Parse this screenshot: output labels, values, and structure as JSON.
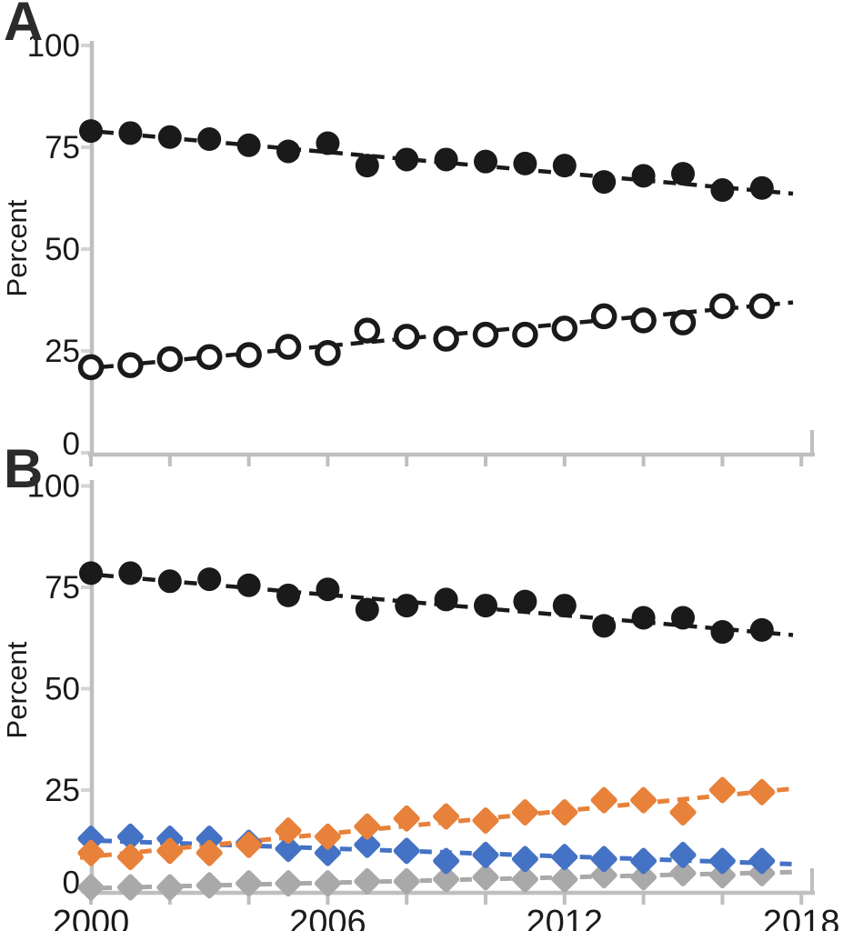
{
  "figure": {
    "panel_a_label": "A",
    "panel_b_label": "B",
    "y_axis_title_a": "Percent",
    "y_axis_title_b": "Percent"
  },
  "colors": {
    "marker_black": "#1a1a1a",
    "marker_orange": "#E8813A",
    "marker_blue": "#4472C4",
    "marker_gray": "#A9A9A9",
    "axis_line": "#BFBFBF",
    "y_tick_mark": "#D4D4D4",
    "tick_text": "#1a1a1a"
  },
  "chart_data": [
    {
      "panel": "A",
      "type": "scatter",
      "title": "",
      "xlabel": "",
      "ylabel": "Percent",
      "x": [
        2000,
        2001,
        2002,
        2003,
        2004,
        2005,
        2006,
        2007,
        2008,
        2009,
        2010,
        2011,
        2012,
        2013,
        2014,
        2015,
        2016,
        2017
      ],
      "xlim": [
        2000,
        2018
      ],
      "ylim": [
        0,
        100
      ],
      "yticks": [
        0,
        25,
        50,
        75,
        100
      ],
      "xtick_label_years": [],
      "xtick_minor_step": 2,
      "grid": false,
      "legend": "none",
      "series": [
        {
          "name": "filled-circles",
          "marker": "filled-circle",
          "color": "#1a1a1a",
          "line": "dashed-trend",
          "values": [
            79,
            78.5,
            77.5,
            77,
            75.5,
            74,
            76,
            70.5,
            72,
            72,
            71.5,
            71,
            70.5,
            66.5,
            68,
            68.5,
            64.5,
            65
          ],
          "trend": {
            "y_2000": 79.0,
            "y_2017": 64.3
          }
        },
        {
          "name": "open-circles",
          "marker": "open-circle",
          "color": "#1a1a1a",
          "line": "dashed-trend",
          "values": [
            21,
            21.5,
            23,
            23.5,
            24,
            26,
            24.5,
            30,
            28.5,
            28,
            29,
            29,
            30.5,
            33.5,
            32.5,
            32,
            36,
            36
          ],
          "trend": {
            "y_2000": 20.8,
            "y_2017": 36.2
          }
        }
      ]
    },
    {
      "panel": "B",
      "type": "scatter",
      "title": "",
      "xlabel": "",
      "ylabel": "Percent",
      "x": [
        2000,
        2001,
        2002,
        2003,
        2004,
        2005,
        2006,
        2007,
        2008,
        2009,
        2010,
        2011,
        2012,
        2013,
        2014,
        2015,
        2016,
        2017
      ],
      "xlim": [
        2000,
        2018
      ],
      "ylim": [
        0,
        100
      ],
      "yticks": [
        0,
        25,
        50,
        75,
        100
      ],
      "xtick_label_years": [
        2000,
        2006,
        2012,
        2018
      ],
      "xtick_minor_step": 2,
      "grid": false,
      "legend": "none",
      "series": [
        {
          "name": "filled-circles",
          "marker": "filled-circle",
          "color": "#1a1a1a",
          "line": "dashed-trend",
          "values": [
            78.5,
            78.5,
            76.5,
            77,
            75.5,
            73,
            74.5,
            69.5,
            70.5,
            72,
            70.5,
            71.5,
            70.5,
            65.5,
            67.5,
            67.5,
            64,
            64.5
          ],
          "trend": {
            "y_2000": 78.2,
            "y_2017": 63.9
          }
        },
        {
          "name": "gray-diamonds",
          "marker": "diamond",
          "color": "#A9A9A9",
          "line": "dashed-trend",
          "values": [
            1,
            1,
            1,
            1.5,
            2,
            2,
            2,
            2.5,
            2.5,
            3,
            3.5,
            3,
            3,
            4,
            3.5,
            4.5,
            4,
            4.5
          ],
          "trend": {
            "y_2000": 0.8,
            "y_2017": 4.6
          }
        },
        {
          "name": "blue-diamonds",
          "marker": "diamond",
          "color": "#4472C4",
          "line": "dashed-trend",
          "values": [
            13,
            13.5,
            13,
            13,
            12,
            10.5,
            9.5,
            11.5,
            10,
            7.5,
            9,
            8,
            8.5,
            8,
            7.5,
            9,
            7.5,
            7.5
          ],
          "trend": {
            "y_2000": 12.6,
            "y_2017": 7.0
          }
        },
        {
          "name": "orange-diamonds",
          "marker": "diamond",
          "color": "#E8813A",
          "line": "dashed-trend",
          "values": [
            9.5,
            8.5,
            10,
            9.5,
            11.5,
            15,
            13.5,
            16,
            18,
            18.5,
            17.5,
            19.5,
            19.5,
            22.5,
            22.5,
            19.5,
            25,
            24.5
          ],
          "trend": {
            "y_2000": 8.6,
            "y_2017": 24.6
          }
        }
      ]
    }
  ]
}
